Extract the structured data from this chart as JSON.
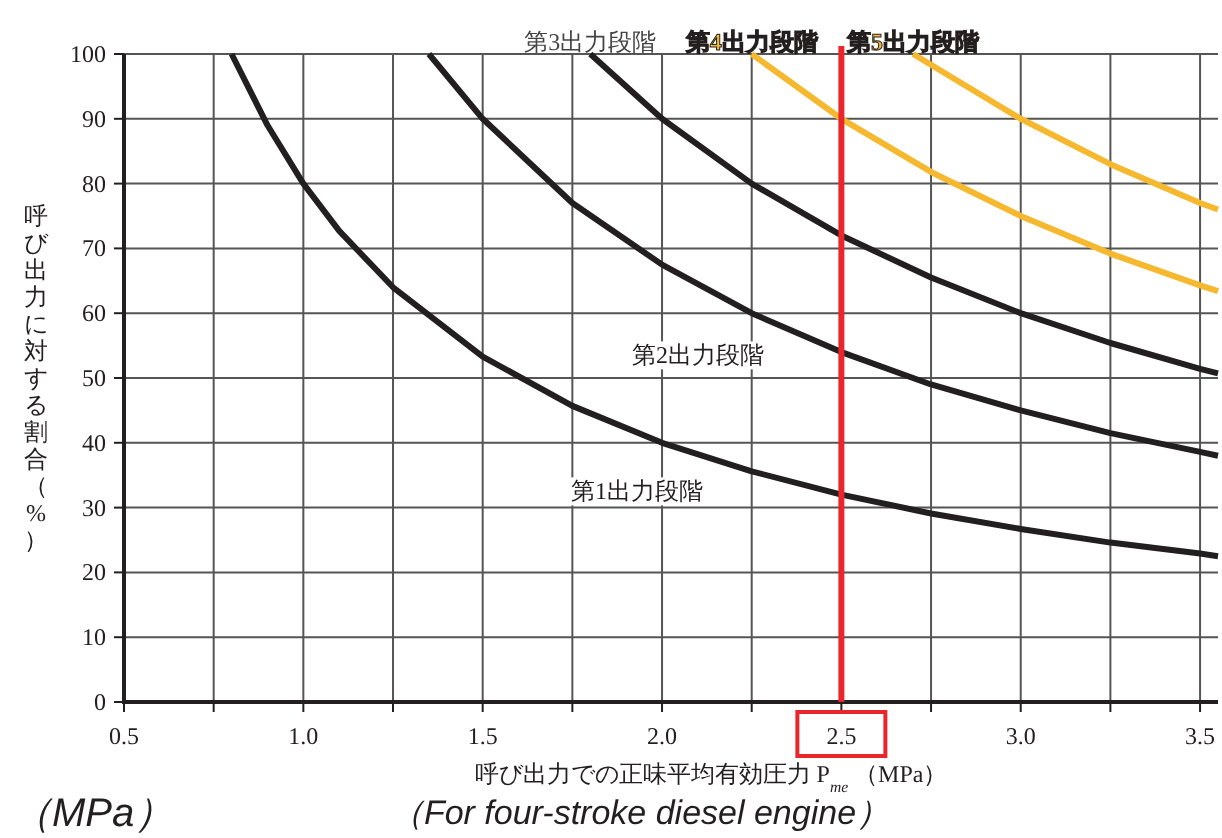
{
  "chart_data": {
    "type": "line",
    "xlabel": "呼び出力での正味平均有効圧力 P$_{me}$ （MPa）",
    "ylabel": "呼び出力に対する割合（%）",
    "series": [
      {
        "name": "第1出力段階",
        "color": "#231f20",
        "x": [
          0.8,
          0.9,
          1.0,
          1.1,
          1.25,
          1.5,
          1.75,
          2.0,
          2.25,
          2.5,
          2.75,
          3.0,
          3.25,
          3.5,
          3.55
        ],
        "values": [
          100,
          89,
          80,
          72.7,
          64,
          53.3,
          45.7,
          40,
          35.6,
          32,
          29.1,
          26.7,
          24.6,
          22.9,
          22.5
        ]
      },
      {
        "name": "第2出力段階",
        "color": "#231f20",
        "x": [
          1.35,
          1.5,
          1.75,
          2.0,
          2.25,
          2.5,
          2.75,
          3.0,
          3.25,
          3.5,
          3.55
        ],
        "values": [
          100,
          90,
          77,
          67.5,
          60,
          54,
          49,
          45,
          41.5,
          38.6,
          38
        ]
      },
      {
        "name": "第3出力段階",
        "color": "#231f20",
        "x": [
          1.8,
          2.0,
          2.25,
          2.5,
          2.75,
          3.0,
          3.25,
          3.5,
          3.55
        ],
        "values": [
          100,
          90,
          80,
          72,
          65.5,
          60,
          55.4,
          51.4,
          50.7
        ]
      },
      {
        "name": "第4出力段階",
        "color": "#f5b82e",
        "x": [
          2.25,
          2.5,
          2.75,
          3.0,
          3.25,
          3.5,
          3.55
        ],
        "values": [
          100,
          90,
          81.8,
          75,
          69.2,
          64.3,
          63.4
        ]
      },
      {
        "name": "第5出力段階",
        "color": "#f5b82e",
        "x": [
          2.7,
          3.0,
          3.25,
          3.5,
          3.55
        ],
        "values": [
          100,
          90,
          83,
          77,
          76
        ]
      }
    ],
    "xlim": [
      0.5,
      3.55
    ],
    "xticks": [
      0.5,
      {
        "value": 0.75,
        "label": null
      },
      {
        "value": 1,
        "label": "1.0"
      },
      {
        "value": 1.25,
        "label": null
      },
      1.5,
      {
        "value": 1.75,
        "label": null
      },
      {
        "value": 2,
        "label": "2.0"
      },
      {
        "value": 2.25,
        "label": null
      },
      2.5,
      {
        "value": 2.75,
        "label": null
      },
      {
        "value": 3,
        "label": "3.0"
      },
      {
        "value": 3.25,
        "label": null
      },
      3.5
    ],
    "ylim": [
      0,
      100
    ],
    "yticks": [
      0,
      10,
      20,
      30,
      40,
      50,
      60,
      70,
      80,
      90,
      100
    ],
    "grid": true,
    "ref_lines": [
      {
        "axis": "x",
        "value": 2.5,
        "color": "#e8262b"
      }
    ],
    "annotations": [
      "（MPa）",
      "（For four-stroke diesel engine）"
    ]
  }
}
